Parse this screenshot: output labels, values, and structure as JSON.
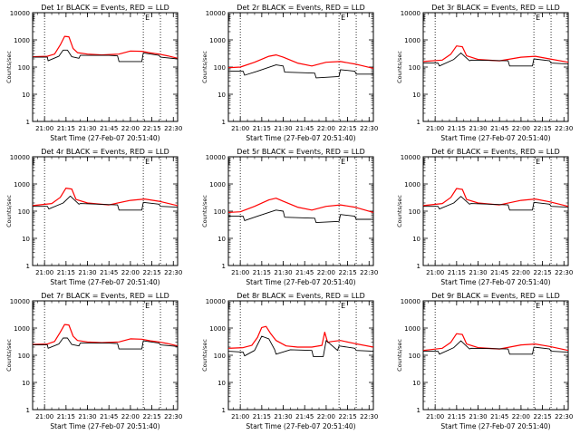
{
  "figure": {
    "background": "#ffffff"
  },
  "colors": {
    "events": "#000000",
    "lld": "#ff0000",
    "axis": "#000000"
  },
  "chart_data": [
    {
      "type": "line",
      "title": "Det 1r BLACK = Events, RED = LLD",
      "ylabel": "Counts/sec",
      "xlabel": "Start Time (27-Feb-07 20:51:40)",
      "x_ticks": [
        "21:00",
        "21:15",
        "21:30",
        "21:45",
        "22:00",
        "22:15",
        "22:30"
      ],
      "y_ticks": [
        "1",
        "10",
        "100",
        "1000",
        "10000"
      ],
      "xlim": [
        "20:51:40",
        "22:33:00"
      ],
      "ylim": [
        1,
        10000
      ],
      "y_scale": "log",
      "vlines": [
        "21:00",
        "22:09",
        "22:21"
      ],
      "marker": "E",
      "series": [
        {
          "color": "#ff0000",
          "x": [
            "20:51:40",
            "21:02",
            "21:07",
            "21:11",
            "21:14",
            "21:17",
            "21:20",
            "21:23",
            "21:30",
            "21:40",
            "21:52",
            "22:00",
            "22:08",
            "22:14",
            "22:20",
            "22:26",
            "22:33"
          ],
          "y": [
            240,
            250,
            300,
            650,
            1350,
            1300,
            480,
            340,
            300,
            280,
            300,
            390,
            380,
            330,
            300,
            260,
            210
          ]
        },
        {
          "color": "#000000",
          "x": [
            "20:51:40",
            "21:02",
            "21:02.5",
            "21:10",
            "21:13",
            "21:16",
            "21:19",
            "21:24",
            "21:25",
            "21:45",
            "21:51",
            "21:52",
            "22:08",
            "22:09",
            "22:20",
            "22:21",
            "22:33"
          ],
          "y": [
            230,
            230,
            170,
            250,
            420,
            420,
            240,
            210,
            270,
            270,
            260,
            160,
            160,
            330,
            270,
            230,
            200
          ]
        }
      ]
    },
    {
      "type": "line",
      "title": "Det 2r BLACK = Events, RED = LLD",
      "ylabel": "Counts/sec",
      "xlabel": "Start Time (27-Feb-07 20:51:40)",
      "x_ticks": [
        "21:00",
        "21:15",
        "21:30",
        "21:45",
        "22:00",
        "22:15",
        "22:30"
      ],
      "y_ticks": [
        "1",
        "10",
        "100",
        "1000",
        "10000"
      ],
      "xlim": [
        "20:51:40",
        "22:33:00"
      ],
      "ylim": [
        1,
        10000
      ],
      "y_scale": "log",
      "vlines": [
        "21:00",
        "22:09",
        "22:21"
      ],
      "marker": "E",
      "series": [
        {
          "color": "#ff0000",
          "x": [
            "20:51:40",
            "21:00",
            "21:10",
            "21:20",
            "21:25",
            "21:30",
            "21:40",
            "21:50",
            "22:00",
            "22:10",
            "22:20",
            "22:33"
          ],
          "y": [
            95,
            100,
            150,
            250,
            280,
            230,
            140,
            110,
            150,
            160,
            130,
            90
          ]
        },
        {
          "color": "#000000",
          "x": [
            "20:51:40",
            "21:02",
            "21:03",
            "21:12",
            "21:25",
            "21:30",
            "21:31",
            "21:52",
            "21:53",
            "22:09",
            "22:10",
            "22:20",
            "22:21",
            "22:33"
          ],
          "y": [
            70,
            70,
            50,
            70,
            120,
            110,
            65,
            60,
            40,
            45,
            80,
            70,
            55,
            55
          ]
        }
      ]
    },
    {
      "type": "line",
      "title": "Det 3r BLACK = Events, RED = LLD",
      "ylabel": "Counts/sec",
      "xlabel": "Start Time (27-Feb-07 20:51:40)",
      "x_ticks": [
        "21:00",
        "21:15",
        "21:30",
        "21:45",
        "22:00",
        "22:15",
        "22:30"
      ],
      "y_ticks": [
        "1",
        "10",
        "100",
        "1000",
        "10000"
      ],
      "xlim": [
        "20:51:40",
        "22:33:00"
      ],
      "ylim": [
        1,
        10000
      ],
      "y_scale": "log",
      "vlines": [
        "21:00",
        "22:09",
        "22:21"
      ],
      "marker": "E",
      "series": [
        {
          "color": "#ff0000",
          "x": [
            "20:51:40",
            "21:05",
            "21:11",
            "21:15",
            "21:19",
            "21:22",
            "21:30",
            "21:45",
            "22:00",
            "22:10",
            "22:20",
            "22:33"
          ],
          "y": [
            160,
            180,
            300,
            600,
            560,
            260,
            190,
            170,
            230,
            250,
            200,
            150
          ]
        },
        {
          "color": "#000000",
          "x": [
            "20:51:40",
            "21:02",
            "21:03",
            "21:13",
            "21:18",
            "21:24",
            "21:25",
            "21:51",
            "21:52",
            "22:08",
            "22:09",
            "22:20",
            "22:21",
            "22:33"
          ],
          "y": [
            140,
            140,
            110,
            190,
            330,
            170,
            180,
            170,
            110,
            110,
            200,
            170,
            140,
            130
          ]
        }
      ]
    },
    {
      "type": "line",
      "title": "Det 4r BLACK = Events, RED = LLD",
      "ylabel": "Counts/sec",
      "xlabel": "Start Time (27-Feb-07 20:51:40)",
      "x_ticks": [
        "21:00",
        "21:15",
        "21:30",
        "21:45",
        "22:00",
        "22:15",
        "22:30"
      ],
      "y_ticks": [
        "1",
        "10",
        "100",
        "1000",
        "10000"
      ],
      "xlim": [
        "20:51:40",
        "22:33:00"
      ],
      "ylim": [
        1,
        10000
      ],
      "y_scale": "log",
      "vlines": [
        "21:00",
        "22:09",
        "22:21"
      ],
      "marker": "E",
      "series": [
        {
          "color": "#ff0000",
          "x": [
            "20:51:40",
            "21:05",
            "21:11",
            "21:15",
            "21:19",
            "21:22",
            "21:30",
            "21:45",
            "22:00",
            "22:10",
            "22:20",
            "22:33"
          ],
          "y": [
            160,
            190,
            320,
            700,
            650,
            270,
            200,
            170,
            250,
            280,
            230,
            160
          ]
        },
        {
          "color": "#000000",
          "x": [
            "20:51:40",
            "21:02",
            "21:03",
            "21:13",
            "21:18",
            "21:24",
            "21:25",
            "21:51",
            "21:52",
            "22:08",
            "22:09",
            "22:20",
            "22:21",
            "22:33"
          ],
          "y": [
            150,
            150,
            120,
            200,
            360,
            180,
            190,
            170,
            110,
            110,
            210,
            180,
            150,
            140
          ]
        }
      ]
    },
    {
      "type": "line",
      "title": "Det 5r BLACK = Events, RED = LLD",
      "ylabel": "Counts/sec",
      "xlabel": "Start Time (27-Feb-07 20:51:40)",
      "x_ticks": [
        "21:00",
        "21:15",
        "21:30",
        "21:45",
        "22:00",
        "22:15",
        "22:30"
      ],
      "y_ticks": [
        "1",
        "10",
        "100",
        "1000",
        "10000"
      ],
      "xlim": [
        "20:51:40",
        "22:33:00"
      ],
      "ylim": [
        1,
        10000
      ],
      "y_scale": "log",
      "vlines": [
        "21:00",
        "22:09",
        "22:21"
      ],
      "marker": "E",
      "series": [
        {
          "color": "#ff0000",
          "x": [
            "20:51:40",
            "21:00",
            "21:10",
            "21:20",
            "21:25",
            "21:30",
            "21:40",
            "21:50",
            "22:00",
            "22:10",
            "22:20",
            "22:33"
          ],
          "y": [
            90,
            95,
            150,
            260,
            300,
            230,
            140,
            110,
            150,
            170,
            140,
            90
          ]
        },
        {
          "color": "#000000",
          "x": [
            "20:51:40",
            "21:02",
            "21:03",
            "21:12",
            "21:25",
            "21:30",
            "21:31",
            "21:52",
            "21:53",
            "22:09",
            "22:10",
            "22:20",
            "22:21",
            "22:33"
          ],
          "y": [
            65,
            65,
            45,
            65,
            110,
            100,
            60,
            55,
            38,
            42,
            75,
            65,
            50,
            50
          ]
        }
      ]
    },
    {
      "type": "line",
      "title": "Det 6r BLACK = Events, RED = LLD",
      "ylabel": "Counts/sec",
      "xlabel": "Start Time (27-Feb-07 20:51:40)",
      "x_ticks": [
        "21:00",
        "21:15",
        "21:30",
        "21:45",
        "22:00",
        "22:15",
        "22:30"
      ],
      "y_ticks": [
        "1",
        "10",
        "100",
        "1000",
        "10000"
      ],
      "xlim": [
        "20:51:40",
        "22:33:00"
      ],
      "ylim": [
        1,
        10000
      ],
      "y_scale": "log",
      "vlines": [
        "21:00",
        "22:09",
        "22:21"
      ],
      "marker": "E",
      "series": [
        {
          "color": "#ff0000",
          "x": [
            "20:51:40",
            "21:05",
            "21:11",
            "21:15",
            "21:19",
            "21:22",
            "21:30",
            "21:45",
            "22:00",
            "22:10",
            "22:20",
            "22:33"
          ],
          "y": [
            160,
            190,
            320,
            680,
            630,
            270,
            200,
            170,
            250,
            280,
            220,
            150
          ]
        },
        {
          "color": "#000000",
          "x": [
            "20:51:40",
            "21:02",
            "21:03",
            "21:13",
            "21:18",
            "21:24",
            "21:25",
            "21:51",
            "21:52",
            "22:08",
            "22:09",
            "22:20",
            "22:21",
            "22:33"
          ],
          "y": [
            150,
            150,
            120,
            200,
            350,
            180,
            190,
            170,
            110,
            110,
            210,
            180,
            150,
            140
          ]
        }
      ]
    },
    {
      "type": "line",
      "title": "Det 7r BLACK = Events, RED = LLD",
      "ylabel": "Counts/sec",
      "xlabel": "Start Time (27-Feb-07 20:51:40)",
      "x_ticks": [
        "21:00",
        "21:15",
        "21:30",
        "21:45",
        "22:00",
        "22:15",
        "22:30"
      ],
      "y_ticks": [
        "1",
        "10",
        "100",
        "1000",
        "10000"
      ],
      "xlim": [
        "20:51:40",
        "22:33:00"
      ],
      "ylim": [
        1,
        10000
      ],
      "y_scale": "log",
      "vlines": [
        "21:00",
        "22:09",
        "22:21"
      ],
      "marker": "E",
      "series": [
        {
          "color": "#ff0000",
          "x": [
            "20:51:40",
            "21:02",
            "21:07",
            "21:11",
            "21:14",
            "21:17",
            "21:20",
            "21:23",
            "21:30",
            "21:40",
            "21:52",
            "22:00",
            "22:08",
            "22:14",
            "22:20",
            "22:26",
            "22:33"
          ],
          "y": [
            250,
            260,
            320,
            700,
            1350,
            1300,
            500,
            350,
            310,
            290,
            310,
            400,
            390,
            340,
            310,
            270,
            220
          ]
        },
        {
          "color": "#000000",
          "x": [
            "20:51:40",
            "21:02",
            "21:02.5",
            "21:10",
            "21:13",
            "21:16",
            "21:19",
            "21:24",
            "21:25",
            "21:45",
            "21:51",
            "21:52",
            "22:08",
            "22:09",
            "22:20",
            "22:21",
            "22:33"
          ],
          "y": [
            240,
            240,
            180,
            260,
            430,
            430,
            250,
            220,
            280,
            280,
            270,
            170,
            170,
            340,
            280,
            240,
            210
          ]
        }
      ]
    },
    {
      "type": "line",
      "title": "Det 8r BLACK = Events, RED = LLD",
      "ylabel": "Counts/sec",
      "xlabel": "Start Time (27-Feb-07 20:51:40)",
      "x_ticks": [
        "21:00",
        "21:15",
        "21:30",
        "21:45",
        "22:00",
        "22:15",
        "22:30"
      ],
      "y_ticks": [
        "1",
        "10",
        "100",
        "1000",
        "10000"
      ],
      "xlim": [
        "20:51:40",
        "22:33:00"
      ],
      "ylim": [
        1,
        10000
      ],
      "y_scale": "log",
      "vlines": [
        "21:00",
        "22:09",
        "22:21"
      ],
      "marker": "E",
      "series": [
        {
          "color": "#ff0000",
          "x": [
            "20:51:40",
            "21:02",
            "21:08",
            "21:12",
            "21:15",
            "21:18",
            "21:21",
            "21:25",
            "21:32",
            "21:40",
            "21:50",
            "21:57",
            "21:59",
            "22:01",
            "22:04",
            "22:10",
            "22:20",
            "22:33"
          ],
          "y": [
            180,
            190,
            230,
            450,
            1050,
            1150,
            650,
            350,
            220,
            200,
            200,
            230,
            700,
            300,
            320,
            350,
            270,
            200
          ]
        },
        {
          "color": "#000000",
          "x": [
            "20:51:40",
            "21:02",
            "21:03",
            "21:10",
            "21:15",
            "21:20",
            "21:24",
            "21:25",
            "21:35",
            "21:50",
            "21:51",
            "21:58",
            "22:00",
            "22:08",
            "22:09",
            "22:20",
            "22:21",
            "22:33"
          ],
          "y": [
            140,
            130,
            95,
            150,
            500,
            400,
            160,
            110,
            160,
            150,
            90,
            90,
            350,
            150,
            220,
            180,
            150,
            140
          ]
        }
      ]
    },
    {
      "type": "line",
      "title": "Det 9r BLACK = Events, RED = LLD",
      "ylabel": "Counts/sec",
      "xlabel": "Start Time (27-Feb-07 20:51:40)",
      "x_ticks": [
        "21:00",
        "21:15",
        "21:30",
        "21:45",
        "22:00",
        "22:15",
        "22:30"
      ],
      "y_ticks": [
        "1",
        "10",
        "100",
        "1000",
        "10000"
      ],
      "xlim": [
        "20:51:40",
        "22:33:00"
      ],
      "ylim": [
        1,
        10000
      ],
      "y_scale": "log",
      "vlines": [
        "21:00",
        "22:09",
        "22:21"
      ],
      "marker": "E",
      "series": [
        {
          "color": "#ff0000",
          "x": [
            "20:51:40",
            "21:05",
            "21:11",
            "21:15",
            "21:19",
            "21:22",
            "21:30",
            "21:45",
            "22:00",
            "22:10",
            "22:20",
            "22:33"
          ],
          "y": [
            150,
            180,
            300,
            620,
            580,
            260,
            190,
            170,
            240,
            260,
            210,
            150
          ]
        },
        {
          "color": "#000000",
          "x": [
            "20:51:40",
            "21:02",
            "21:03",
            "21:13",
            "21:18",
            "21:24",
            "21:25",
            "21:51",
            "21:52",
            "22:08",
            "22:09",
            "22:20",
            "22:21",
            "22:33"
          ],
          "y": [
            140,
            140,
            110,
            190,
            340,
            170,
            180,
            170,
            110,
            110,
            200,
            170,
            140,
            130
          ]
        }
      ]
    }
  ]
}
